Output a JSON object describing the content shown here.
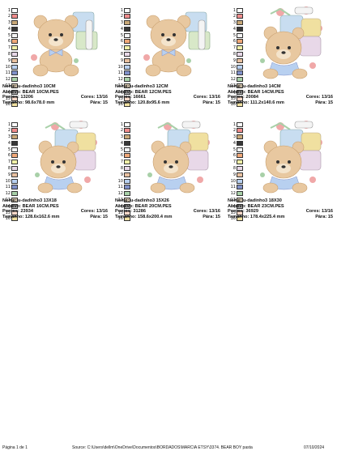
{
  "colors": {
    "swatches": [
      "#ffffff",
      "#f08c8c",
      "#c8a878",
      "#383838",
      "#f4f4f4",
      "#f0a878",
      "#f0f0a8",
      "#e8d8e8",
      "#e8c0a0",
      "#b8d0f0",
      "#8090c8",
      "#a8d0a8",
      "#d8c8b0",
      "#a8a8a8",
      "#f8d8c8",
      "#f0e0a0"
    ],
    "bear": "#e8c8a0",
    "bear_dark": "#c8a070"
  },
  "cards": [
    {
      "nome_label": "Nome:",
      "nome": "u-dadinho3 10CM",
      "arquivo_label": "Arquivo:",
      "arquivo": "BEAR 10CM.PES",
      "pontos_label": "Pontos:",
      "pontos": "13206",
      "cores_label": "Cores:",
      "cores": "13/16",
      "tamanho_label": "Tamanho:",
      "tamanho": "98.6x78.0 mm",
      "para_label": "Pára:",
      "para": "15",
      "swatch_nums": [
        "1",
        "2",
        "3",
        "4",
        "5",
        "6",
        "7",
        "8",
        "9",
        "10",
        "11",
        "12",
        "13",
        "14",
        "15",
        "16"
      ],
      "style": "small"
    },
    {
      "nome_label": "Nome:",
      "nome": "u-dadinho3 12CM",
      "arquivo_label": "Arquivo:",
      "arquivo": "BEAR 12CM.PES",
      "pontos_label": "Pontos:",
      "pontos": "16661",
      "cores_label": "Cores:",
      "cores": "13/16",
      "tamanho_label": "Tamanho:",
      "tamanho": "120.8x95.6 mm",
      "para_label": "Pára:",
      "para": "15",
      "swatch_nums": [
        "1",
        "2",
        "3",
        "4",
        "5",
        "6",
        "7",
        "8",
        "9",
        "10",
        "11",
        "12",
        "13",
        "14",
        "15",
        "16"
      ],
      "style": "small"
    },
    {
      "nome_label": "Nome:",
      "nome": "u-dadinho3 14CM",
      "arquivo_label": "Arquivo:",
      "arquivo": "BEAR 14CM.PES",
      "pontos_label": "Pontos:",
      "pontos": "20084",
      "cores_label": "Cores:",
      "cores": "13/16",
      "tamanho_label": "Tamanho:",
      "tamanho": "111.2x140.6 mm",
      "para_label": "Pára:",
      "para": "15",
      "swatch_nums": [
        "1",
        "2",
        "3",
        "4",
        "5",
        "6",
        "7",
        "8",
        "9",
        "10",
        "11",
        "12",
        "13",
        "14",
        "15",
        "16"
      ],
      "style": "tall"
    },
    {
      "nome_label": "Nome:",
      "nome": "u-dadinho3 13X18",
      "arquivo_label": "Arquivo:",
      "arquivo": "BEAR 16CM.PES",
      "pontos_label": "Pontos:",
      "pontos": "23934",
      "cores_label": "Cores:",
      "cores": "13/16",
      "tamanho_label": "Tamanho:",
      "tamanho": "128.6x162.6 mm",
      "para_label": "Pára:",
      "para": "15",
      "swatch_nums": [
        "1",
        "2",
        "3",
        "4",
        "5",
        "6",
        "7",
        "8",
        "9",
        "10",
        "11",
        "12",
        "13",
        "14",
        "15",
        "16"
      ],
      "style": "tall"
    },
    {
      "nome_label": "Nome:",
      "nome": "u-dadinho3 15X26",
      "arquivo_label": "Arquivo:",
      "arquivo": "BEAR 20CM.PES",
      "pontos_label": "Pontos:",
      "pontos": "31286",
      "cores_label": "Cores:",
      "cores": "13/16",
      "tamanho_label": "Tamanho:",
      "tamanho": "158.6x200.4 mm",
      "para_label": "Pára:",
      "para": "15",
      "swatch_nums": [
        "1",
        "2",
        "3",
        "4",
        "5",
        "6",
        "7",
        "8",
        "9",
        "10",
        "11",
        "12",
        "13",
        "14",
        "15",
        "16"
      ],
      "style": "tall"
    },
    {
      "nome_label": "Nome:",
      "nome": "u-dadinho3 18X30",
      "arquivo_label": "Arquivo:",
      "arquivo": "BEAR 23CM.PES",
      "pontos_label": "Pontos:",
      "pontos": "36929",
      "cores_label": "Cores:",
      "cores": "13/16",
      "tamanho_label": "Tamanho:",
      "tamanho": "178.4x225.4 mm",
      "para_label": "Pára:",
      "para": "15",
      "swatch_nums": [
        "1",
        "2",
        "3",
        "4",
        "5",
        "6",
        "7",
        "8",
        "9",
        "10",
        "11",
        "12",
        "13",
        "14",
        "15",
        "16"
      ],
      "style": "tall"
    }
  ],
  "footer": {
    "page": "Página 1 de 1",
    "source": "Source: C:\\Users\\dellm\\OneDrive\\Documentos\\BORDADOS\\MARCIA ETSY\\3374. BEAR BOY pasta",
    "date": "07/10/2024"
  }
}
